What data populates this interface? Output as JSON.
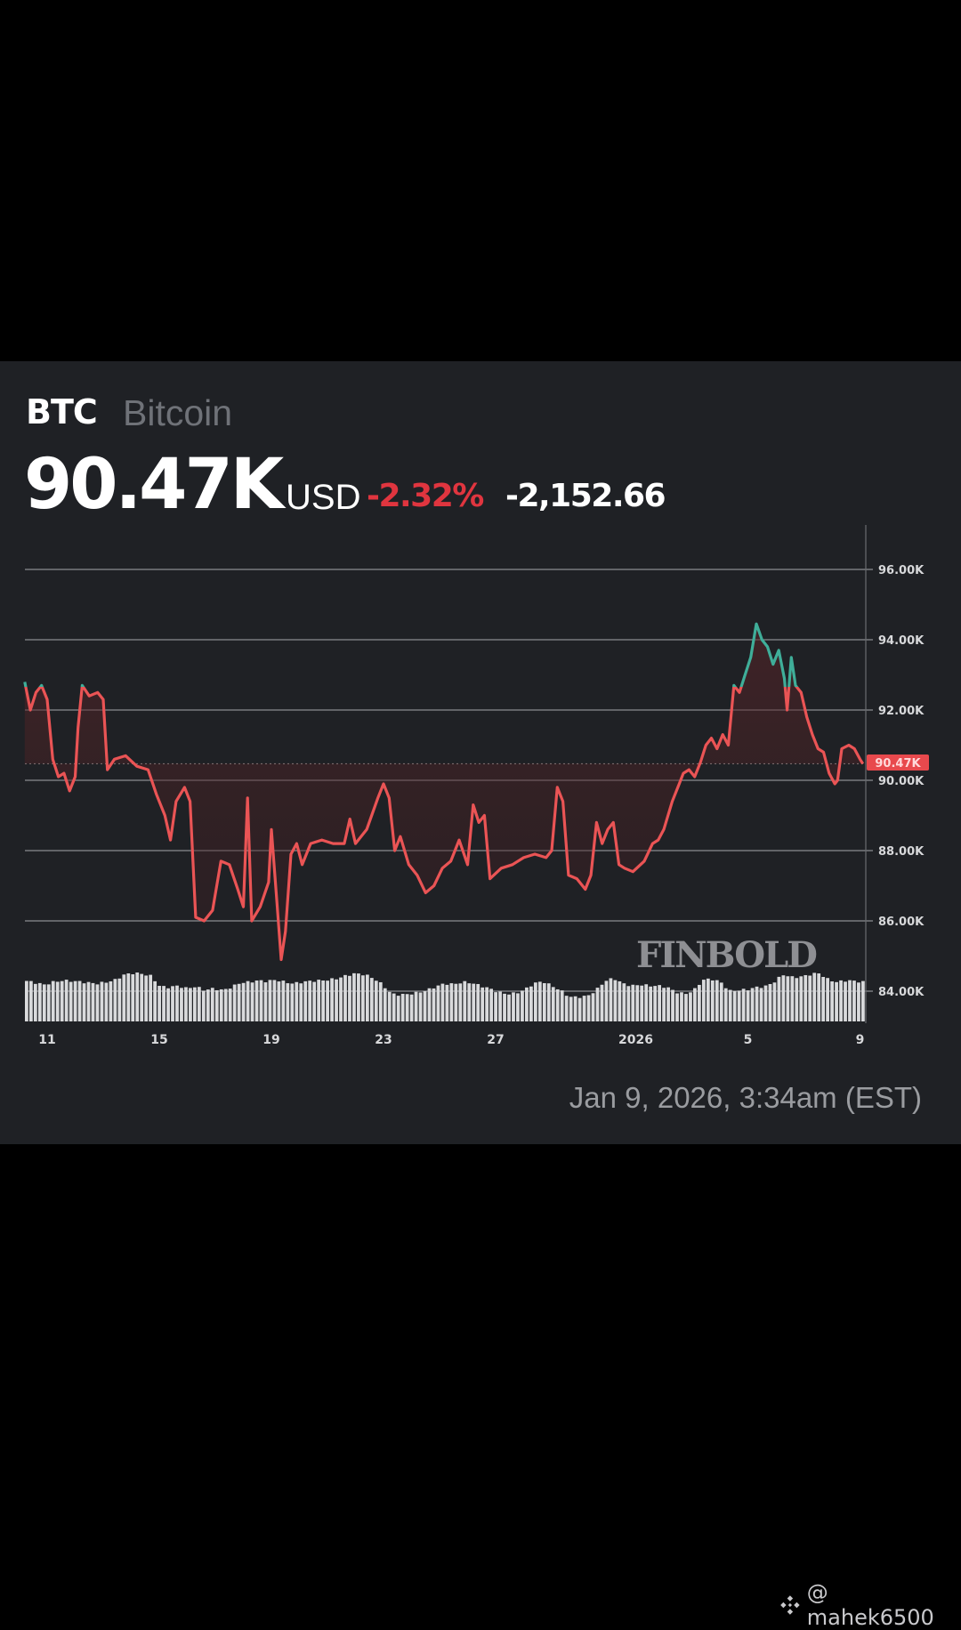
{
  "header": {
    "symbol": "BTC",
    "name": "Bitcoin",
    "price": "90.47K",
    "currency": "USD",
    "change_pct": "-2.32%",
    "change_abs": "-2,152.66"
  },
  "colors": {
    "card_bg": "#1f2125",
    "line_down": "#ea5455",
    "line_up": "#3fae99",
    "badge": "#e8494d",
    "grid": "#8a8c90",
    "volume": "#d9dadc"
  },
  "current_price_badge": "90.47K",
  "watermark_brand": "FINBOLD",
  "timestamp": "Jan 9, 2026, 3:34am (EST)",
  "footer_watermark": {
    "icon": "binance-logo-icon",
    "handle": "@ mahek6500"
  },
  "chart_data": {
    "type": "line",
    "title": "BTC Bitcoin",
    "xlabel": "",
    "ylabel": "USD",
    "ylim": [
      83000,
      97200
    ],
    "y_ticks": [
      "96.00K",
      "94.00K",
      "92.00K",
      "90.00K",
      "88.00K",
      "86.00K",
      "84.00K"
    ],
    "y_tick_values": [
      96000,
      94000,
      92000,
      90000,
      88000,
      86000,
      84000
    ],
    "x_ticks": [
      "11",
      "15",
      "19",
      "23",
      "27",
      "2026",
      "5",
      "9"
    ],
    "x_tick_day_offsets": [
      0,
      4,
      8,
      12,
      16,
      21,
      25,
      29
    ],
    "reference_price": 90470,
    "grid": true,
    "series": [
      {
        "name": "BTC/USD price",
        "x_unit": "days since Dec 11",
        "points": [
          [
            -0.8,
            92800
          ],
          [
            -0.6,
            92000
          ],
          [
            -0.4,
            92500
          ],
          [
            -0.2,
            92700
          ],
          [
            0.0,
            92300
          ],
          [
            0.2,
            90600
          ],
          [
            0.4,
            90100
          ],
          [
            0.6,
            90200
          ],
          [
            0.8,
            89700
          ],
          [
            1.0,
            90100
          ],
          [
            1.1,
            91500
          ],
          [
            1.25,
            92700
          ],
          [
            1.5,
            92400
          ],
          [
            1.8,
            92500
          ],
          [
            2.0,
            92300
          ],
          [
            2.15,
            90300
          ],
          [
            2.4,
            90600
          ],
          [
            2.8,
            90700
          ],
          [
            3.2,
            90400
          ],
          [
            3.6,
            90300
          ],
          [
            3.9,
            89600
          ],
          [
            4.2,
            89000
          ],
          [
            4.4,
            88300
          ],
          [
            4.6,
            89400
          ],
          [
            4.9,
            89800
          ],
          [
            5.1,
            89400
          ],
          [
            5.3,
            86100
          ],
          [
            5.6,
            86000
          ],
          [
            5.9,
            86300
          ],
          [
            6.2,
            87700
          ],
          [
            6.5,
            87600
          ],
          [
            6.8,
            86900
          ],
          [
            7.0,
            86400
          ],
          [
            7.15,
            89500
          ],
          [
            7.3,
            86000
          ],
          [
            7.6,
            86400
          ],
          [
            7.9,
            87100
          ],
          [
            8.0,
            88600
          ],
          [
            8.2,
            86500
          ],
          [
            8.35,
            84900
          ],
          [
            8.5,
            85700
          ],
          [
            8.7,
            87900
          ],
          [
            8.9,
            88200
          ],
          [
            9.1,
            87600
          ],
          [
            9.4,
            88200
          ],
          [
            9.8,
            88300
          ],
          [
            10.2,
            88200
          ],
          [
            10.6,
            88200
          ],
          [
            10.8,
            88900
          ],
          [
            11.0,
            88200
          ],
          [
            11.4,
            88600
          ],
          [
            11.8,
            89500
          ],
          [
            12.0,
            89900
          ],
          [
            12.2,
            89500
          ],
          [
            12.4,
            88000
          ],
          [
            12.6,
            88400
          ],
          [
            12.9,
            87600
          ],
          [
            13.2,
            87300
          ],
          [
            13.5,
            86800
          ],
          [
            13.8,
            87000
          ],
          [
            14.1,
            87500
          ],
          [
            14.4,
            87700
          ],
          [
            14.7,
            88300
          ],
          [
            15.0,
            87600
          ],
          [
            15.2,
            89300
          ],
          [
            15.4,
            88800
          ],
          [
            15.6,
            89000
          ],
          [
            15.8,
            87200
          ],
          [
            16.2,
            87500
          ],
          [
            16.6,
            87600
          ],
          [
            17.0,
            87800
          ],
          [
            17.4,
            87900
          ],
          [
            17.8,
            87800
          ],
          [
            18.0,
            88000
          ],
          [
            18.2,
            89800
          ],
          [
            18.4,
            89400
          ],
          [
            18.6,
            87300
          ],
          [
            18.9,
            87200
          ],
          [
            19.2,
            86900
          ],
          [
            19.4,
            87300
          ],
          [
            19.6,
            88800
          ],
          [
            19.8,
            88200
          ],
          [
            20.0,
            88600
          ],
          [
            20.2,
            88800
          ],
          [
            20.4,
            87600
          ],
          [
            20.6,
            87500
          ],
          [
            20.9,
            87400
          ],
          [
            21.3,
            87700
          ],
          [
            21.6,
            88200
          ],
          [
            21.8,
            88300
          ],
          [
            22.0,
            88600
          ],
          [
            22.3,
            89400
          ],
          [
            22.5,
            89800
          ],
          [
            22.7,
            90200
          ],
          [
            22.9,
            90300
          ],
          [
            23.1,
            90100
          ],
          [
            23.3,
            90500
          ],
          [
            23.5,
            91000
          ],
          [
            23.7,
            91200
          ],
          [
            23.9,
            90900
          ],
          [
            24.1,
            91300
          ],
          [
            24.3,
            91000
          ],
          [
            24.5,
            92700
          ],
          [
            24.7,
            92500
          ],
          [
            24.9,
            93000
          ],
          [
            25.1,
            93500
          ],
          [
            25.3,
            94450
          ],
          [
            25.5,
            94000
          ],
          [
            25.7,
            93800
          ],
          [
            25.9,
            93300
          ],
          [
            26.1,
            93700
          ],
          [
            26.3,
            92900
          ],
          [
            26.4,
            92000
          ],
          [
            26.55,
            93500
          ],
          [
            26.7,
            92700
          ],
          [
            26.9,
            92500
          ],
          [
            27.1,
            91800
          ],
          [
            27.3,
            91300
          ],
          [
            27.5,
            90900
          ],
          [
            27.7,
            90800
          ],
          [
            27.9,
            90200
          ],
          [
            28.1,
            89900
          ],
          [
            28.2,
            90000
          ],
          [
            28.35,
            90900
          ],
          [
            28.6,
            91000
          ],
          [
            28.8,
            90900
          ],
          [
            29.0,
            90600
          ],
          [
            29.1,
            90470
          ]
        ]
      }
    ],
    "volume": {
      "note": "relative bar heights 0-1 beneath price",
      "values": [
        0.75,
        0.7,
        0.65,
        0.72,
        0.76,
        0.75,
        0.73,
        0.7,
        0.68,
        0.72,
        0.78,
        0.92,
        0.96,
        0.94,
        0.88,
        0.6,
        0.58,
        0.62,
        0.55,
        0.6,
        0.5,
        0.55,
        0.5,
        0.58,
        0.7,
        0.72,
        0.76,
        0.74,
        0.78,
        0.72,
        0.68,
        0.72,
        0.75,
        0.76,
        0.78,
        0.82,
        0.9,
        0.95,
        0.92,
        0.82,
        0.65,
        0.4,
        0.38,
        0.4,
        0.44,
        0.5,
        0.6,
        0.68,
        0.66,
        0.72,
        0.7,
        0.62,
        0.55,
        0.45,
        0.4,
        0.42,
        0.52,
        0.68,
        0.74,
        0.62,
        0.5,
        0.32,
        0.32,
        0.34,
        0.5,
        0.75,
        0.82,
        0.68,
        0.62,
        0.65,
        0.62,
        0.62,
        0.58,
        0.45,
        0.4,
        0.5,
        0.78,
        0.8,
        0.72,
        0.48,
        0.5,
        0.52,
        0.58,
        0.6,
        0.72,
        0.92,
        0.85,
        0.86,
        0.92,
        0.96,
        0.8,
        0.72,
        0.76,
        0.75,
        0.72
      ]
    }
  }
}
